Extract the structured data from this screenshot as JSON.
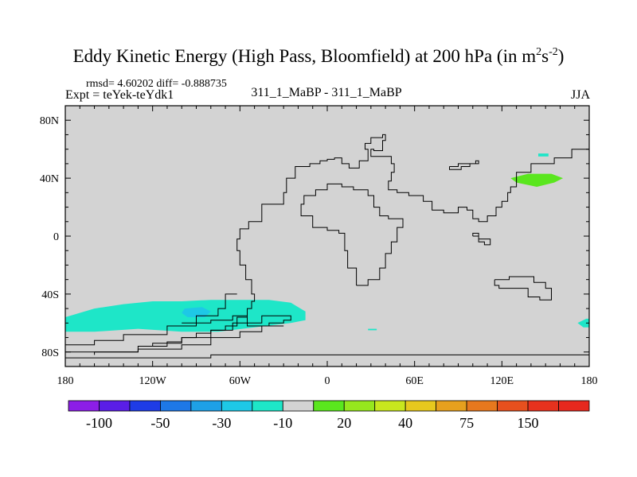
{
  "title": {
    "main": "Eddy Kinetic Energy (High Pass, Bloomfield) at 200 hPa (in m",
    "sup1": "2",
    "mid": "s",
    "sup2": "-2",
    "end": ")"
  },
  "stats": "rmsd= 4.60202 diff= -0.888735",
  "expt": "Expt = teYek-teYdk1",
  "center_label": "311_1_MaBP - 311_1_MaBP",
  "season": "JJA",
  "chart_data": {
    "type": "heatmap",
    "title": "Eddy Kinetic Energy (High Pass, Bloomfield) at 200 hPa (in m2s-2)",
    "xlim": [
      -180,
      180
    ],
    "ylim": [
      -90,
      90
    ],
    "x_ticks": [
      {
        "v": -180,
        "label": "180"
      },
      {
        "v": -120,
        "label": "120W"
      },
      {
        "v": -60,
        "label": "60W"
      },
      {
        "v": 0,
        "label": "0"
      },
      {
        "v": 60,
        "label": "60E"
      },
      {
        "v": 120,
        "label": "120E"
      },
      {
        "v": 180,
        "label": "180"
      }
    ],
    "y_ticks": [
      {
        "v": 80,
        "label": "80N"
      },
      {
        "v": 40,
        "label": "40N"
      },
      {
        "v": 0,
        "label": "0"
      },
      {
        "v": -40,
        "label": "40S"
      },
      {
        "v": -80,
        "label": "80S"
      }
    ],
    "background_color": "#d3d3d3",
    "colorbar": {
      "colors": [
        "#8c1ee6",
        "#5a1ee6",
        "#1e3ce6",
        "#1e78e6",
        "#1ea0e6",
        "#1ec8e6",
        "#1ee6c8",
        "#d3d3d3",
        "#5ae61e",
        "#96e61e",
        "#c8e61e",
        "#e6c81e",
        "#e6a01e",
        "#e6781e",
        "#e6501e",
        "#e6321e",
        "#e6281e"
      ],
      "labels": [
        {
          "boundary": 1,
          "text": "-100"
        },
        {
          "boundary": 3,
          "text": "-50"
        },
        {
          "boundary": 5,
          "text": "-30"
        },
        {
          "boundary": 7,
          "text": "-10"
        },
        {
          "boundary": 9,
          "text": "20"
        },
        {
          "boundary": 11,
          "text": "40"
        },
        {
          "boundary": 13,
          "text": "75"
        },
        {
          "boundary": 15,
          "text": "150"
        }
      ]
    },
    "regions": [
      {
        "name": "southern-ocean-negative",
        "level": "-10",
        "color": "#1ee6c8",
        "points": [
          [
            -180,
            -56
          ],
          [
            -160,
            -50
          ],
          [
            -140,
            -47
          ],
          [
            -120,
            -45
          ],
          [
            -100,
            -45
          ],
          [
            -80,
            -44
          ],
          [
            -60,
            -44
          ],
          [
            -40,
            -44
          ],
          [
            -25,
            -46
          ],
          [
            -15,
            -52
          ],
          [
            -15,
            -58
          ],
          [
            -25,
            -60
          ],
          [
            -50,
            -63
          ],
          [
            -75,
            -66
          ],
          [
            -100,
            -66
          ],
          [
            -130,
            -64
          ],
          [
            -160,
            -66
          ],
          [
            -180,
            -66
          ]
        ]
      },
      {
        "name": "southern-ocean-core",
        "level": "-30",
        "color": "#1ec8e6",
        "points": [
          [
            -98,
            -50
          ],
          [
            -86,
            -49
          ],
          [
            -80,
            -52
          ],
          [
            -84,
            -56
          ],
          [
            -96,
            -56
          ],
          [
            -100,
            -53
          ]
        ]
      },
      {
        "name": "south-indian-speck",
        "level": "-10",
        "color": "#1ee6c8",
        "points": [
          [
            28,
            -64
          ],
          [
            34,
            -64
          ],
          [
            34,
            -65
          ],
          [
            28,
            -65
          ]
        ]
      },
      {
        "name": "south-pacific-edge",
        "level": "-10",
        "color": "#1ee6c8",
        "points": [
          [
            172,
            -60
          ],
          [
            178,
            -57
          ],
          [
            180,
            -57
          ],
          [
            180,
            -63
          ],
          [
            176,
            -63
          ]
        ]
      },
      {
        "name": "north-pacific-positive",
        "level": "20",
        "color": "#5ae61e",
        "points": [
          [
            126,
            40
          ],
          [
            138,
            43
          ],
          [
            154,
            43
          ],
          [
            162,
            40
          ],
          [
            156,
            37
          ],
          [
            144,
            34
          ],
          [
            130,
            37
          ]
        ]
      },
      {
        "name": "north-pacific-speck",
        "level": "-10",
        "color": "#1ee6c8",
        "points": [
          [
            145,
            57
          ],
          [
            152,
            57
          ],
          [
            152,
            55
          ],
          [
            145,
            55
          ]
        ]
      }
    ],
    "coastlines": [
      [
        [
          -180,
          -80
        ],
        [
          -140,
          -80
        ],
        [
          -130,
          -76
        ],
        [
          -110,
          -73
        ],
        [
          -100,
          -70
        ],
        [
          -90,
          -67
        ],
        [
          -80,
          -65
        ],
        [
          -70,
          -62
        ],
        [
          -62,
          -56
        ],
        [
          -55,
          -50
        ],
        [
          -52,
          -45
        ],
        [
          -50,
          -40
        ],
        [
          -52,
          -30
        ],
        [
          -56,
          -20
        ],
        [
          -60,
          -10
        ],
        [
          -62,
          -2
        ],
        [
          -60,
          5
        ],
        [
          -54,
          10
        ],
        [
          -45,
          22
        ],
        [
          -30,
          30
        ],
        [
          -28,
          40
        ],
        [
          -22,
          48
        ],
        [
          -12,
          50
        ],
        [
          -5,
          52
        ],
        [
          0,
          53
        ],
        [
          5,
          54
        ],
        [
          10,
          50
        ],
        [
          15,
          47
        ],
        [
          22,
          52
        ],
        [
          28,
          60
        ],
        [
          26,
          64
        ],
        [
          30,
          68
        ],
        [
          38,
          70
        ],
        [
          40,
          66
        ],
        [
          38,
          59
        ],
        [
          32,
          60
        ],
        [
          30,
          55
        ],
        [
          44,
          50
        ],
        [
          46,
          44
        ],
        [
          44,
          38
        ],
        [
          42,
          32
        ],
        [
          48,
          30
        ],
        [
          56,
          28
        ],
        [
          62,
          28
        ],
        [
          66,
          24
        ],
        [
          72,
          18
        ],
        [
          80,
          16
        ],
        [
          90,
          20
        ],
        [
          96,
          18
        ],
        [
          100,
          12
        ],
        [
          104,
          10
        ],
        [
          110,
          14
        ],
        [
          116,
          20
        ],
        [
          120,
          24
        ],
        [
          124,
          30
        ],
        [
          126,
          34
        ],
        [
          130,
          44
        ],
        [
          140,
          50
        ],
        [
          156,
          54
        ],
        [
          168,
          60
        ],
        [
          180,
          66
        ]
      ],
      [
        [
          20,
          -34
        ],
        [
          28,
          -30
        ],
        [
          36,
          -22
        ],
        [
          40,
          -12
        ],
        [
          44,
          -4
        ],
        [
          48,
          6
        ],
        [
          52,
          12
        ],
        [
          42,
          14
        ],
        [
          36,
          20
        ],
        [
          32,
          28
        ],
        [
          28,
          32
        ],
        [
          18,
          34
        ],
        [
          10,
          36
        ],
        [
          0,
          32
        ],
        [
          -8,
          28
        ],
        [
          -16,
          22
        ],
        [
          -18,
          14
        ],
        [
          -10,
          6
        ],
        [
          0,
          4
        ],
        [
          8,
          2
        ],
        [
          12,
          -10
        ],
        [
          14,
          -22
        ],
        [
          20,
          -34
        ]
      ],
      [
        [
          115,
          -30
        ],
        [
          125,
          -28
        ],
        [
          135,
          -28
        ],
        [
          142,
          -32
        ],
        [
          150,
          -36
        ],
        [
          154,
          -44
        ],
        [
          146,
          -42
        ],
        [
          138,
          -36
        ],
        [
          128,
          -36
        ],
        [
          118,
          -34
        ],
        [
          115,
          -30
        ]
      ],
      [
        [
          -180,
          -84
        ],
        [
          -130,
          -84
        ],
        [
          -80,
          -82
        ],
        [
          -40,
          -82
        ],
        [
          0,
          -82
        ],
        [
          40,
          -82
        ],
        [
          80,
          -82
        ],
        [
          120,
          -82
        ],
        [
          160,
          -82
        ],
        [
          180,
          -82
        ]
      ],
      [
        [
          -62,
          -40
        ],
        [
          -70,
          -50
        ],
        [
          -75,
          -55
        ],
        [
          -90,
          -62
        ],
        [
          -110,
          -68
        ],
        [
          -140,
          -72
        ],
        [
          -160,
          -75
        ],
        [
          -180,
          -76
        ]
      ],
      [
        [
          -100,
          -60
        ],
        [
          -80,
          -58
        ],
        [
          -65,
          -55
        ],
        [
          -55,
          -62
        ],
        [
          -40,
          -60
        ],
        [
          -30,
          -58
        ],
        [
          -25,
          -55
        ],
        [
          -45,
          -60
        ],
        [
          -65,
          -65
        ],
        [
          -80,
          -70
        ],
        [
          -100,
          -74
        ],
        [
          -120,
          -76
        ]
      ],
      [
        [
          -30,
          -62
        ],
        [
          -45,
          -66
        ],
        [
          -60,
          -70
        ],
        [
          -80,
          -75
        ],
        [
          -100,
          -78
        ],
        [
          -130,
          -80
        ],
        [
          -160,
          -82
        ]
      ],
      [
        [
          84,
          48
        ],
        [
          90,
          50
        ],
        [
          96,
          50
        ],
        [
          102,
          52
        ],
        [
          104,
          50
        ],
        [
          98,
          48
        ],
        [
          92,
          46
        ],
        [
          86,
          46
        ],
        [
          84,
          48
        ]
      ],
      [
        [
          100,
          0
        ],
        [
          104,
          -4
        ],
        [
          108,
          -6
        ],
        [
          112,
          -2
        ],
        [
          104,
          2
        ],
        [
          100,
          0
        ]
      ]
    ]
  }
}
